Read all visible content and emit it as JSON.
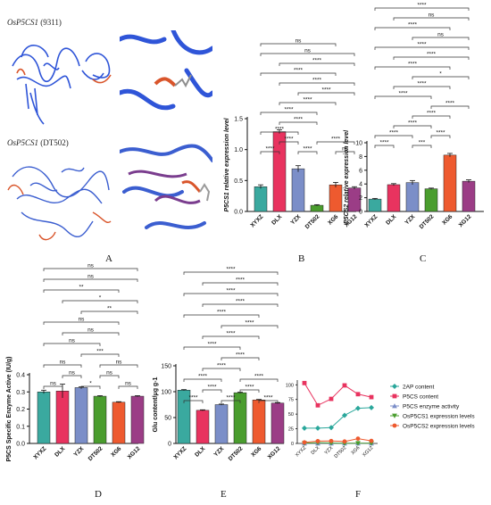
{
  "panel_letters": [
    "A",
    "B",
    "C",
    "D",
    "E",
    "F"
  ],
  "structures": [
    {
      "gene": "OsP5CS1",
      "variety": "(9311)"
    },
    {
      "gene": "OsP5CS1",
      "variety": "(DT502)"
    }
  ],
  "colors": {
    "XYXZ": "#3aa99f",
    "DLX": "#e8335f",
    "YZX": "#7b8ec8",
    "DT502": "#4a9d2e",
    "XG6": "#ee5a2f",
    "XG12": "#9b3d86",
    "protein_blue": "#2f55d8",
    "protein_red": "#d9552b"
  },
  "chart_data": [
    {
      "panel": "B",
      "type": "bar",
      "categories": [
        "XYXZ",
        "DLX",
        "YZX",
        "DT502",
        "XG6",
        "XG12"
      ],
      "values": [
        0.4,
        1.29,
        0.69,
        0.1,
        0.43,
        0.38
      ],
      "errors": [
        0.03,
        0.03,
        0.05,
        0.01,
        0.04,
        0.02
      ],
      "ylabel": "P5CS1 relative expression level",
      "yticks": [
        "0.0",
        "0.5",
        "1.0",
        "1.5"
      ],
      "ylim": [
        0,
        1.5
      ],
      "sig": [
        {
          "a": 0,
          "b": 1,
          "t": "****"
        },
        {
          "a": 1,
          "b": 2,
          "t": "****"
        },
        {
          "a": 2,
          "b": 3,
          "t": "****"
        },
        {
          "a": 4,
          "b": 5,
          "t": "ns"
        },
        {
          "a": 0,
          "b": 2,
          "t": "****"
        },
        {
          "a": 1,
          "b": 3,
          "t": "****"
        },
        {
          "a": 3,
          "b": 5,
          "t": "****"
        },
        {
          "a": 0,
          "b": 3,
          "t": "****"
        },
        {
          "a": 1,
          "b": 4,
          "t": "****"
        },
        {
          "a": 2,
          "b": 5,
          "t": "****"
        },
        {
          "a": 1,
          "b": 5,
          "t": "****"
        },
        {
          "a": 0,
          "b": 4,
          "t": "****"
        },
        {
          "a": 1,
          "b": 5,
          "t": "****"
        },
        {
          "a": 0,
          "b": 5,
          "t": "ns"
        },
        {
          "a": 0,
          "b": 4,
          "t": "ns"
        }
      ]
    },
    {
      "panel": "C",
      "type": "bar",
      "categories": [
        "XYXZ",
        "DLX",
        "YZX",
        "DT502",
        "XG6",
        "XG12"
      ],
      "values": [
        1.8,
        3.9,
        4.2,
        3.3,
        8.2,
        4.4
      ],
      "errors": [
        0.1,
        0.15,
        0.3,
        0.1,
        0.25,
        0.2
      ],
      "ylabel": "P5CS2 relative expression level",
      "yticks": [
        "0",
        "2",
        "4",
        "6",
        "8",
        "10"
      ],
      "ylim": [
        0,
        10
      ],
      "sig": [
        {
          "a": 0,
          "b": 1,
          "t": "****"
        },
        {
          "a": 2,
          "b": 3,
          "t": "***"
        },
        {
          "a": 3,
          "b": 4,
          "t": "****"
        },
        {
          "a": 0,
          "b": 2,
          "t": "****"
        },
        {
          "a": 1,
          "b": 3,
          "t": "****"
        },
        {
          "a": 2,
          "b": 4,
          "t": "****"
        },
        {
          "a": 3,
          "b": 5,
          "t": "****"
        },
        {
          "a": 0,
          "b": 3,
          "t": "****"
        },
        {
          "a": 1,
          "b": 4,
          "t": "****"
        },
        {
          "a": 2,
          "b": 5,
          "t": "*"
        },
        {
          "a": 0,
          "b": 4,
          "t": "****"
        },
        {
          "a": 1,
          "b": 5,
          "t": "****"
        },
        {
          "a": 0,
          "b": 5,
          "t": "****"
        },
        {
          "a": 2,
          "b": 5,
          "t": "ns"
        },
        {
          "a": 0,
          "b": 4,
          "t": "****"
        },
        {
          "a": 1,
          "b": 5,
          "t": "ns"
        },
        {
          "a": 0,
          "b": 5,
          "t": "****"
        }
      ]
    },
    {
      "panel": "D",
      "type": "bar",
      "categories": [
        "XYXZ",
        "DLX",
        "YZX",
        "DT502",
        "XG6",
        "XG12"
      ],
      "values": [
        0.3,
        0.305,
        0.325,
        0.275,
        0.24,
        0.275
      ],
      "errors": [
        0.01,
        0.04,
        0.004,
        0.003,
        0.003,
        0.003
      ],
      "ylabel": "P5CS Specific Enzyme Active (IU/g)",
      "yticks": [
        "0.0",
        "0.1",
        "0.2",
        "0.3",
        "0.4"
      ],
      "ylim": [
        0,
        0.4
      ],
      "sig": [
        {
          "a": 0,
          "b": 1,
          "t": "ns"
        },
        {
          "a": 1,
          "b": 2,
          "t": "ns"
        },
        {
          "a": 2,
          "b": 3,
          "t": "*"
        },
        {
          "a": 3,
          "b": 4,
          "t": "ns"
        },
        {
          "a": 4,
          "b": 5,
          "t": "ns"
        },
        {
          "a": 0,
          "b": 2,
          "t": "ns"
        },
        {
          "a": 2,
          "b": 4,
          "t": "***"
        },
        {
          "a": 3,
          "b": 5,
          "t": "ns"
        },
        {
          "a": 0,
          "b": 3,
          "t": "ns"
        },
        {
          "a": 1,
          "b": 4,
          "t": "ns"
        },
        {
          "a": 0,
          "b": 4,
          "t": "ns"
        },
        {
          "a": 2,
          "b": 5,
          "t": "**"
        },
        {
          "a": 1,
          "b": 5,
          "t": "*"
        },
        {
          "a": 0,
          "b": 4,
          "t": "**"
        },
        {
          "a": 0,
          "b": 5,
          "t": "ns"
        },
        {
          "a": 0,
          "b": 5,
          "t": "ns"
        }
      ]
    },
    {
      "panel": "E",
      "type": "bar",
      "categories": [
        "XYXZ",
        "DLX",
        "YZX",
        "DT502",
        "XG6",
        "XG12"
      ],
      "values": [
        103,
        64,
        75,
        98,
        84,
        78
      ],
      "errors": [
        1,
        1,
        1,
        1,
        1,
        1
      ],
      "ylabel": "Glu content/μg g-1",
      "yticks": [
        "0",
        "50",
        "100",
        "150"
      ],
      "ylim": [
        0,
        150
      ],
      "sig": [
        {
          "a": 0,
          "b": 1,
          "t": "****"
        },
        {
          "a": 1,
          "b": 2,
          "t": "****"
        },
        {
          "a": 2,
          "b": 3,
          "t": "****"
        },
        {
          "a": 3,
          "b": 4,
          "t": "****"
        },
        {
          "a": 4,
          "b": 5,
          "t": "****"
        },
        {
          "a": 0,
          "b": 2,
          "t": "****"
        },
        {
          "a": 1,
          "b": 3,
          "t": "****"
        },
        {
          "a": 2,
          "b": 4,
          "t": "****"
        },
        {
          "a": 3,
          "b": 5,
          "t": "****"
        },
        {
          "a": 0,
          "b": 3,
          "t": "****"
        },
        {
          "a": 1,
          "b": 4,
          "t": "****"
        },
        {
          "a": 2,
          "b": 5,
          "t": "****"
        },
        {
          "a": 0,
          "b": 4,
          "t": "****"
        },
        {
          "a": 1,
          "b": 5,
          "t": "****"
        },
        {
          "a": 0,
          "b": 5,
          "t": "****"
        },
        {
          "a": 1,
          "b": 5,
          "t": "****"
        },
        {
          "a": 0,
          "b": 5,
          "t": "****"
        }
      ]
    },
    {
      "panel": "F",
      "type": "line",
      "categories": [
        "XYXZ",
        "DLX",
        "YZX",
        "DT502",
        "XG6",
        "XG12"
      ],
      "yticks": [
        "0",
        "25",
        "50",
        "75",
        "100"
      ],
      "ylim": [
        0,
        105
      ],
      "series": [
        {
          "name": "2AP content",
          "color": "#2aa79b",
          "marker": "diamond",
          "values": [
            26,
            26,
            27,
            48,
            60,
            61
          ]
        },
        {
          "name": "P5CS content",
          "color": "#e8335f",
          "marker": "square",
          "values": [
            103,
            65,
            76,
            99,
            84,
            79
          ]
        },
        {
          "name": "P5CS enzyme activity",
          "color": "#7b8ec8",
          "marker": "triangle-up",
          "values": [
            0.3,
            0.3,
            0.3,
            0.3,
            0.2,
            0.3
          ]
        },
        {
          "name": "OsP5CS1 expression levels",
          "color": "#4a9d2e",
          "marker": "triangle-down",
          "values": [
            0.4,
            1.3,
            0.7,
            0.1,
            0.4,
            0.4
          ]
        },
        {
          "name": "OsP5CS2 expression levels",
          "color": "#ee5a2f",
          "marker": "circle",
          "values": [
            1.8,
            3.9,
            4.2,
            3.3,
            8.2,
            4.4
          ]
        }
      ]
    }
  ]
}
